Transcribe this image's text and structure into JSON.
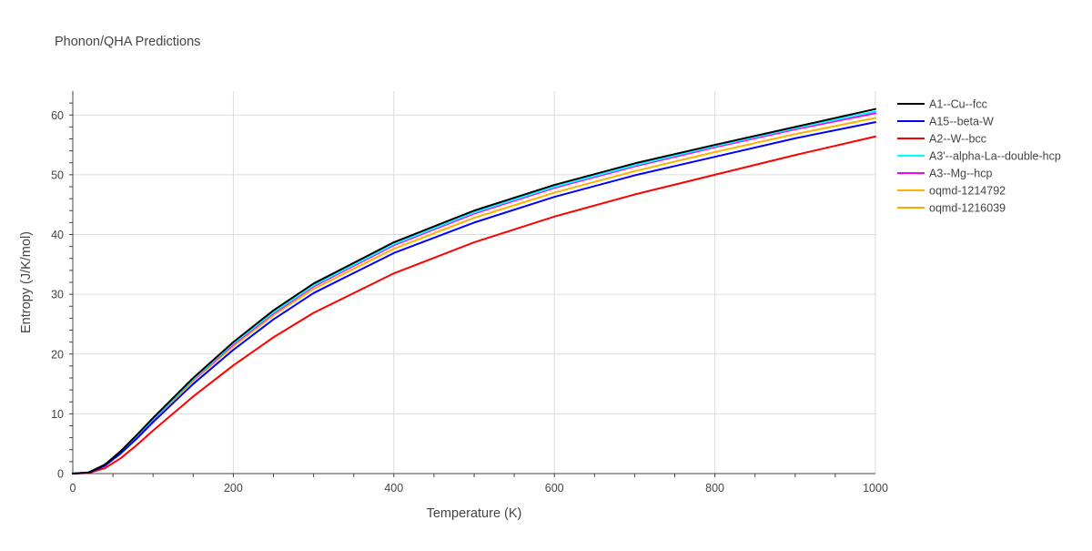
{
  "chart_data": {
    "type": "line",
    "title": "Phonon/QHA Predictions",
    "xlabel": "Temperature (K)",
    "ylabel": "Entropy (J/K/mol)",
    "xlim": [
      0,
      1000
    ],
    "ylim": [
      0,
      64
    ],
    "xticks": [
      0,
      200,
      400,
      600,
      800,
      1000
    ],
    "yticks": [
      0,
      10,
      20,
      30,
      40,
      50,
      60
    ],
    "grid": true,
    "legend_position": "top-right",
    "x": [
      0,
      20,
      40,
      60,
      80,
      100,
      150,
      200,
      250,
      300,
      400,
      500,
      600,
      700,
      800,
      900,
      1000
    ],
    "series": [
      {
        "name": "A1--Cu--fcc",
        "color": "#000000",
        "values": [
          0,
          0.2,
          1.5,
          3.8,
          6.5,
          9.3,
          16.0,
          22.0,
          27.3,
          31.8,
          38.7,
          44.0,
          48.3,
          51.9,
          55.0,
          58.0,
          61.0
        ]
      },
      {
        "name": "A15--beta-W",
        "color": "#0000ff",
        "values": [
          0,
          0.15,
          1.3,
          3.4,
          5.9,
          8.6,
          15.0,
          20.7,
          25.8,
          30.2,
          36.9,
          42.0,
          46.3,
          49.9,
          53.0,
          56.1,
          58.8
        ]
      },
      {
        "name": "A2--W--bcc",
        "color": "#ff0000",
        "values": [
          0,
          0.1,
          0.9,
          2.6,
          4.8,
          7.2,
          12.9,
          18.1,
          22.8,
          26.9,
          33.5,
          38.7,
          43.0,
          46.7,
          50.0,
          53.3,
          56.4
        ]
      },
      {
        "name": "A3'--alpha-La--double-hcp",
        "color": "#00ffff",
        "values": [
          0,
          0.2,
          1.5,
          3.7,
          6.4,
          9.2,
          15.8,
          21.8,
          27.0,
          31.5,
          38.4,
          43.7,
          48.0,
          51.6,
          54.8,
          57.8,
          60.6
        ]
      },
      {
        "name": "A3--Mg--hcp",
        "color": "#ff00ff",
        "values": [
          0,
          0.2,
          1.5,
          3.7,
          6.3,
          9.1,
          15.7,
          21.6,
          26.8,
          31.3,
          38.2,
          43.5,
          47.8,
          51.4,
          54.6,
          57.6,
          60.3
        ]
      },
      {
        "name": "oqmd-1214792",
        "color": "#ffb000",
        "values": [
          0,
          0.2,
          1.45,
          3.6,
          6.2,
          9.0,
          15.5,
          21.3,
          26.5,
          30.9,
          37.6,
          42.8,
          47.0,
          50.6,
          53.8,
          56.8,
          59.5
        ]
      },
      {
        "name": "oqmd-1216039",
        "color": "#ffa500",
        "values": [
          0,
          0.2,
          1.5,
          3.7,
          6.4,
          9.2,
          15.8,
          21.7,
          27.0,
          31.5,
          38.4,
          43.6,
          47.9,
          51.5,
          54.7,
          57.7,
          60.5
        ]
      }
    ]
  }
}
